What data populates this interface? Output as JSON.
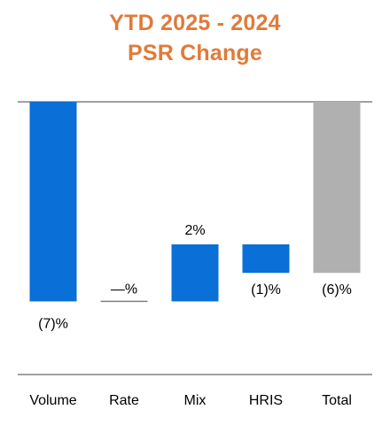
{
  "chart_data": {
    "type": "waterfall",
    "title": [
      "YTD 2025 - 2024",
      "PSR Change"
    ],
    "categories": [
      "Volume",
      "Rate",
      "Mix",
      "HRIS",
      "Total"
    ],
    "values": [
      -7,
      0,
      2,
      -1,
      -6
    ],
    "value_labels": [
      "(7)%",
      "—%",
      "2%",
      "(1)%",
      "(6)%"
    ],
    "bar_kinds": [
      "delta",
      "delta",
      "delta",
      "delta",
      "total"
    ],
    "colors": {
      "title": "#e07b39",
      "bar": "#0a6fd6",
      "total": "#b0b0b0",
      "axis": "#808080",
      "text": "#000000"
    }
  }
}
